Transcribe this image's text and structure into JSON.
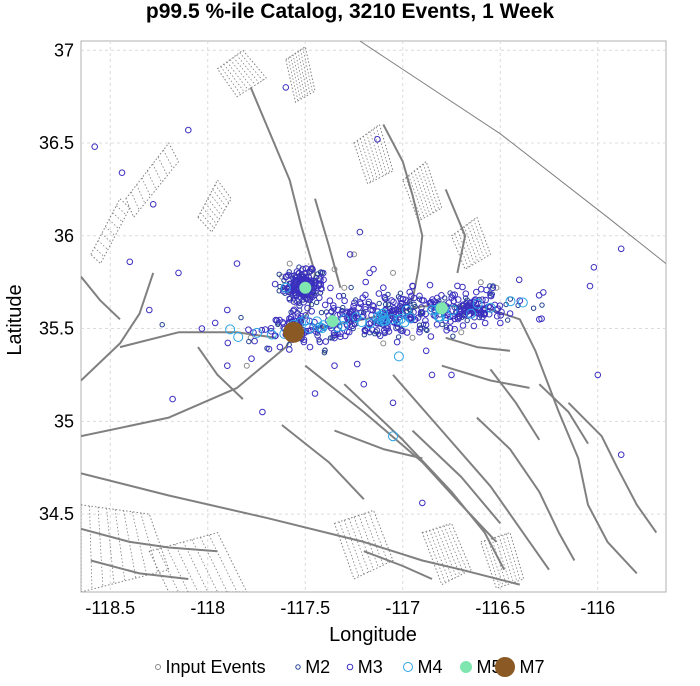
{
  "chart_data": {
    "type": "scatter",
    "title": "p99.5 %-ile Catalog, 3210 Events, 1 Week",
    "xlabel": "Longitude",
    "ylabel": "Latitude",
    "xlim": [
      -118.65,
      -115.65
    ],
    "ylim": [
      34.08,
      37.05
    ],
    "xticks": [
      -118.5,
      -118,
      -117.5,
      -117,
      -116.5,
      -116
    ],
    "yticks": [
      34.5,
      35,
      35.5,
      36,
      36.5,
      37
    ],
    "grid": true,
    "legend_position": "bottom",
    "legend": [
      {
        "label": "Input Events",
        "key": "input"
      },
      {
        "label": "M2",
        "key": "m2"
      },
      {
        "label": "M3",
        "key": "m3"
      },
      {
        "label": "M4",
        "key": "m4"
      },
      {
        "label": "M5",
        "key": "m5"
      },
      {
        "label": "M7",
        "key": "m7"
      }
    ],
    "styles": {
      "input": {
        "color": "#888888",
        "r": 2.5,
        "fill": "none"
      },
      "m2": {
        "color": "#1f3f8f",
        "r": 2.2,
        "fill": "none"
      },
      "m3": {
        "color": "#3b2fbf",
        "r": 2.8,
        "fill": "none"
      },
      "m4": {
        "color": "#2aa3e6",
        "r": 4.5,
        "fill": "none"
      },
      "m5": {
        "color": "#7fe6b0",
        "r": 5.5,
        "fill": "#7fe6b0"
      },
      "m7": {
        "color": "#8b5a24",
        "r": 10,
        "fill": "#8b5a24"
      }
    },
    "series": [
      {
        "key": "m7",
        "points": [
          [
            -117.56,
            35.48
          ]
        ]
      },
      {
        "key": "m5",
        "points": [
          [
            -117.5,
            35.72
          ],
          [
            -117.55,
            35.46
          ],
          [
            -117.36,
            35.54
          ],
          [
            -116.8,
            35.61
          ]
        ]
      },
      {
        "key": "m4",
        "points": [
          [
            -117.5,
            35.72
          ],
          [
            -117.56,
            35.52
          ],
          [
            -117.48,
            35.5
          ],
          [
            -117.3,
            35.55
          ],
          [
            -117.1,
            35.58
          ],
          [
            -116.98,
            35.6
          ],
          [
            -116.85,
            35.6
          ],
          [
            -116.65,
            35.58
          ],
          [
            -117.6,
            35.72
          ],
          [
            -117.02,
            35.35
          ],
          [
            -117.05,
            34.92
          ]
        ]
      },
      {
        "key": "m3",
        "points": [
          [
            -118.58,
            36.48
          ],
          [
            -118.44,
            36.34
          ],
          [
            -118.1,
            36.57
          ],
          [
            -118.28,
            36.17
          ],
          [
            -117.6,
            36.8
          ],
          [
            -117.17,
            35.8
          ],
          [
            -117.1,
            35.72
          ],
          [
            -116.95,
            35.73
          ],
          [
            -116.72,
            35.73
          ],
          [
            -116.55,
            35.68
          ],
          [
            -116.4,
            35.65
          ],
          [
            -117.22,
            36.02
          ],
          [
            -117.27,
            35.9
          ],
          [
            -117.63,
            35.4
          ],
          [
            -117.35,
            35.3
          ],
          [
            -117.2,
            35.2
          ],
          [
            -116.88,
            35.38
          ],
          [
            -116.85,
            35.25
          ],
          [
            -117.05,
            35.1
          ],
          [
            -116.9,
            34.56
          ],
          [
            -117.45,
            35.15
          ],
          [
            -117.72,
            35.05
          ],
          [
            -118.4,
            35.86
          ],
          [
            -118.15,
            35.8
          ],
          [
            -118.3,
            35.6
          ],
          [
            -118.03,
            35.5
          ],
          [
            -117.9,
            35.6
          ],
          [
            -117.85,
            35.85
          ],
          [
            -116.02,
            35.83
          ],
          [
            -116.0,
            35.25
          ],
          [
            -115.88,
            35.93
          ],
          [
            -115.88,
            34.82
          ],
          [
            -118.18,
            35.12
          ],
          [
            -117.9,
            35.3
          ],
          [
            -117.13,
            36.52
          ],
          [
            -117.15,
            35.82
          ],
          [
            -116.5,
            35.53
          ],
          [
            -116.3,
            35.55
          ],
          [
            -117.25,
            35.55
          ],
          [
            -116.75,
            35.25
          ]
        ]
      },
      {
        "key": "input",
        "points": [
          [
            -117.48,
            35.8
          ],
          [
            -117.42,
            35.78
          ],
          [
            -117.35,
            35.82
          ],
          [
            -117.3,
            35.72
          ],
          [
            -117.62,
            35.78
          ],
          [
            -117.58,
            35.85
          ],
          [
            -116.6,
            35.75
          ],
          [
            -116.52,
            35.72
          ],
          [
            -117.78,
            35.45
          ],
          [
            -117.8,
            35.3
          ],
          [
            -117.4,
            35.38
          ],
          [
            -117.1,
            35.42
          ],
          [
            -116.95,
            35.45
          ],
          [
            -116.7,
            35.48
          ],
          [
            -117.25,
            35.9
          ],
          [
            -117.05,
            35.8
          ]
        ]
      }
    ],
    "clusters": [
      {
        "key": "m3",
        "cx": -117.51,
        "cy": 35.73,
        "sx": 0.05,
        "sy": 0.04,
        "n": 130
      },
      {
        "key": "m2",
        "cx": -117.51,
        "cy": 35.73,
        "sx": 0.06,
        "sy": 0.05,
        "n": 60
      },
      {
        "key": "m3",
        "cx": -117.05,
        "cy": 35.57,
        "sx": 0.32,
        "sy": 0.06,
        "n": 260,
        "slope": 0.11
      },
      {
        "key": "m2",
        "cx": -117.05,
        "cy": 35.57,
        "sx": 0.34,
        "sy": 0.07,
        "n": 130,
        "slope": 0.11
      },
      {
        "key": "m4",
        "cx": -117.1,
        "cy": 35.56,
        "sx": 0.3,
        "sy": 0.02,
        "n": 40,
        "slope": 0.11
      },
      {
        "key": "m3",
        "cx": -117.55,
        "cy": 35.5,
        "sx": 0.06,
        "sy": 0.04,
        "n": 60
      },
      {
        "key": "m3",
        "cx": -116.62,
        "cy": 35.6,
        "sx": 0.08,
        "sy": 0.03,
        "n": 50
      }
    ],
    "faults": {
      "color": "#808080",
      "solid": [
        [
          [
            -118.65,
            34.92
          ],
          [
            -118.2,
            35.02
          ],
          [
            -117.85,
            35.18
          ],
          [
            -117.6,
            35.4
          ],
          [
            -117.48,
            35.6
          ],
          [
            -117.45,
            35.8
          ],
          [
            -117.52,
            36.05
          ],
          [
            -117.58,
            36.3
          ],
          [
            -117.7,
            36.6
          ],
          [
            -117.78,
            36.8
          ]
        ],
        [
          [
            -117.45,
            35.5
          ],
          [
            -117.2,
            35.55
          ],
          [
            -116.9,
            35.62
          ],
          [
            -116.6,
            35.62
          ],
          [
            -116.4,
            35.55
          ],
          [
            -116.32,
            35.38
          ],
          [
            -116.2,
            35.05
          ],
          [
            -116.1,
            34.8
          ],
          [
            -116.05,
            34.55
          ],
          [
            -115.95,
            34.35
          ],
          [
            -115.8,
            34.18
          ]
        ],
        [
          [
            -118.65,
            35.22
          ],
          [
            -118.45,
            35.42
          ],
          [
            -118.35,
            35.58
          ],
          [
            -118.28,
            35.8
          ]
        ],
        [
          [
            -118.65,
            34.72
          ],
          [
            -118.2,
            34.6
          ],
          [
            -117.7,
            34.48
          ],
          [
            -117.2,
            34.35
          ],
          [
            -116.9,
            34.25
          ],
          [
            -116.7,
            34.2
          ],
          [
            -116.4,
            34.12
          ]
        ],
        [
          [
            -117.5,
            35.3
          ],
          [
            -117.2,
            35.05
          ],
          [
            -116.9,
            34.78
          ],
          [
            -116.7,
            34.55
          ],
          [
            -116.52,
            34.35
          ]
        ],
        [
          [
            -117.3,
            35.2
          ],
          [
            -117.0,
            34.9
          ],
          [
            -116.75,
            34.62
          ],
          [
            -116.58,
            34.4
          ],
          [
            -116.48,
            34.2
          ]
        ],
        [
          [
            -117.05,
            35.25
          ],
          [
            -116.8,
            34.95
          ],
          [
            -116.55,
            34.65
          ],
          [
            -116.35,
            34.35
          ],
          [
            -116.25,
            34.2
          ]
        ],
        [
          [
            -116.95,
            34.95
          ],
          [
            -116.7,
            34.7
          ],
          [
            -116.5,
            34.45
          ]
        ],
        [
          [
            -117.62,
            34.98
          ],
          [
            -117.38,
            34.78
          ],
          [
            -117.2,
            34.58
          ]
        ],
        [
          [
            -116.62,
            35.02
          ],
          [
            -116.45,
            34.85
          ],
          [
            -116.3,
            34.62
          ],
          [
            -116.2,
            34.4
          ],
          [
            -116.12,
            34.25
          ]
        ],
        [
          [
            -116.55,
            35.28
          ],
          [
            -116.42,
            35.1
          ],
          [
            -116.3,
            34.9
          ]
        ],
        [
          [
            -117.1,
            36.6
          ],
          [
            -117.0,
            36.4
          ],
          [
            -116.95,
            36.22
          ],
          [
            -116.9,
            36.0
          ],
          [
            -116.92,
            35.82
          ],
          [
            -116.95,
            35.65
          ]
        ],
        [
          [
            -116.78,
            36.25
          ],
          [
            -116.68,
            36.0
          ],
          [
            -116.72,
            35.8
          ]
        ],
        [
          [
            -117.45,
            36.2
          ],
          [
            -117.38,
            35.95
          ],
          [
            -117.32,
            35.72
          ]
        ],
        [
          [
            -118.65,
            35.78
          ],
          [
            -118.55,
            35.65
          ],
          [
            -118.45,
            35.55
          ]
        ],
        [
          [
            -118.45,
            35.4
          ],
          [
            -118.15,
            35.48
          ],
          [
            -117.85,
            35.48
          ],
          [
            -117.65,
            35.45
          ]
        ],
        [
          [
            -116.15,
            35.1
          ],
          [
            -115.98,
            34.92
          ],
          [
            -115.9,
            34.75
          ],
          [
            -115.8,
            34.55
          ],
          [
            -115.7,
            34.4
          ]
        ],
        [
          [
            -116.3,
            35.2
          ],
          [
            -116.15,
            35.05
          ],
          [
            -116.05,
            34.88
          ]
        ],
        [
          [
            -116.78,
            35.45
          ],
          [
            -116.62,
            35.4
          ],
          [
            -116.45,
            35.38
          ]
        ],
        [
          [
            -116.8,
            35.3
          ],
          [
            -116.55,
            35.22
          ],
          [
            -116.35,
            35.18
          ]
        ],
        [
          [
            -118.05,
            35.4
          ],
          [
            -117.95,
            35.25
          ],
          [
            -117.82,
            35.12
          ]
        ],
        [
          [
            -117.35,
            34.95
          ],
          [
            -117.1,
            34.85
          ],
          [
            -116.9,
            34.8
          ]
        ],
        [
          [
            -118.65,
            34.42
          ],
          [
            -118.4,
            34.35
          ],
          [
            -118.2,
            34.32
          ],
          [
            -117.95,
            34.3
          ]
        ],
        [
          [
            -118.6,
            34.25
          ],
          [
            -118.35,
            34.18
          ],
          [
            -118.1,
            34.15
          ]
        ],
        [
          [
            -117.2,
            34.3
          ],
          [
            -117.0,
            34.22
          ],
          [
            -116.85,
            34.15
          ]
        ]
      ],
      "thin": [
        [
          [
            -117.22,
            37.05
          ],
          [
            -116.5,
            36.55
          ],
          [
            -115.95,
            36.1
          ],
          [
            -115.65,
            35.85
          ]
        ]
      ],
      "dotted_polygons": [
        [
          [
            -118.42,
            36.2
          ],
          [
            -118.2,
            36.5
          ],
          [
            -118.15,
            36.4
          ],
          [
            -118.38,
            36.1
          ]
        ],
        [
          [
            -118.6,
            35.9
          ],
          [
            -118.45,
            36.2
          ],
          [
            -118.4,
            36.15
          ],
          [
            -118.55,
            35.85
          ]
        ],
        [
          [
            -117.95,
            36.9
          ],
          [
            -117.82,
            37.0
          ],
          [
            -117.7,
            36.85
          ],
          [
            -117.85,
            36.75
          ]
        ],
        [
          [
            -117.6,
            36.95
          ],
          [
            -117.5,
            37.02
          ],
          [
            -117.45,
            36.78
          ],
          [
            -117.55,
            36.72
          ]
        ],
        [
          [
            -118.05,
            36.1
          ],
          [
            -117.95,
            36.3
          ],
          [
            -117.88,
            36.2
          ],
          [
            -117.98,
            36.02
          ]
        ],
        [
          [
            -117.25,
            36.5
          ],
          [
            -117.12,
            36.6
          ],
          [
            -117.05,
            36.35
          ],
          [
            -117.18,
            36.28
          ]
        ],
        [
          [
            -117.0,
            36.3
          ],
          [
            -116.88,
            36.4
          ],
          [
            -116.8,
            36.15
          ],
          [
            -116.92,
            36.08
          ]
        ],
        [
          [
            -116.75,
            36.0
          ],
          [
            -116.62,
            36.1
          ],
          [
            -116.55,
            35.9
          ],
          [
            -116.68,
            35.82
          ]
        ],
        [
          [
            -118.65,
            34.55
          ],
          [
            -118.3,
            34.5
          ],
          [
            -118.2,
            34.2
          ],
          [
            -118.65,
            34.08
          ]
        ],
        [
          [
            -118.3,
            34.3
          ],
          [
            -117.95,
            34.4
          ],
          [
            -117.8,
            34.08
          ],
          [
            -118.2,
            34.08
          ]
        ],
        [
          [
            -117.35,
            34.45
          ],
          [
            -117.15,
            34.52
          ],
          [
            -117.05,
            34.25
          ],
          [
            -117.25,
            34.15
          ]
        ],
        [
          [
            -116.9,
            34.4
          ],
          [
            -116.75,
            34.45
          ],
          [
            -116.65,
            34.2
          ],
          [
            -116.8,
            34.12
          ]
        ],
        [
          [
            -116.6,
            34.35
          ],
          [
            -116.45,
            34.4
          ],
          [
            -116.38,
            34.15
          ],
          [
            -116.52,
            34.1
          ]
        ],
        [
          [
            -117.62,
            35.75
          ],
          [
            -117.48,
            35.85
          ],
          [
            -117.4,
            35.7
          ],
          [
            -117.55,
            35.62
          ]
        ]
      ]
    }
  }
}
